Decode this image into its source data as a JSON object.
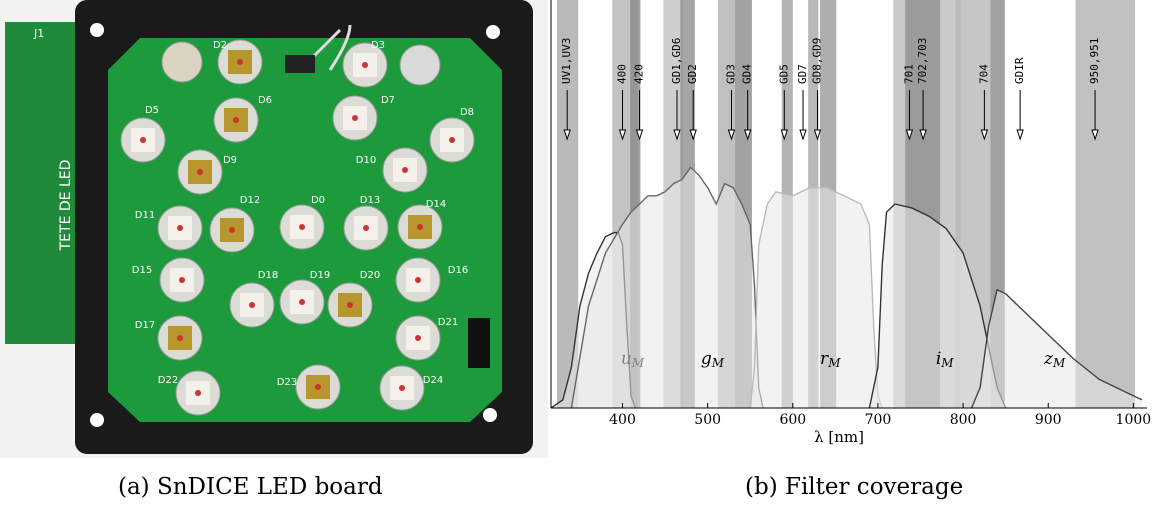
{
  "photo": {
    "connector": "J1",
    "board_text": "TETE DE LED",
    "led_labels": [
      "D2",
      "D3",
      "D5",
      "D6",
      "D7",
      "D8",
      "D9",
      "D10",
      "D11",
      "D12",
      "D0",
      "D13",
      "D14",
      "D15",
      "D16",
      "D17",
      "D18",
      "D19",
      "D20",
      "D21",
      "D22",
      "D23",
      "D24"
    ],
    "caption": "(a) SnDICE LED board"
  },
  "chart_data": {
    "type": "line",
    "xlabel": "λ [nm]",
    "caption": "(b) Filter coverage",
    "xlim": [
      316,
      1016
    ],
    "ylim": [
      0,
      1
    ],
    "xticks": [
      400,
      500,
      600,
      700,
      800,
      900,
      1000
    ],
    "bands": [
      {
        "lo": 323,
        "hi": 348,
        "color": "#a9a9a9"
      },
      {
        "lo": 388,
        "hi": 418,
        "color": "#b4b4b4"
      },
      {
        "lo": 409,
        "hi": 421,
        "color": "#8a8a8a"
      },
      {
        "lo": 448,
        "hi": 471,
        "color": "#c2c2c2"
      },
      {
        "lo": 468,
        "hi": 485,
        "color": "#8f8f8f"
      },
      {
        "lo": 512,
        "hi": 532,
        "color": "#b0b0b0"
      },
      {
        "lo": 532,
        "hi": 552,
        "color": "#8c8c8c"
      },
      {
        "lo": 587,
        "hi": 600,
        "color": "#a0a0a0"
      },
      {
        "lo": 618,
        "hi": 630,
        "color": "#a8a8a8"
      },
      {
        "lo": 632,
        "hi": 651,
        "color": "#9a9a9a"
      },
      {
        "lo": 718,
        "hi": 797,
        "color": "#bdbdbd"
      },
      {
        "lo": 732,
        "hi": 773,
        "color": "#8e8e8e"
      },
      {
        "lo": 791,
        "hi": 832,
        "color": "#b8b8b8"
      },
      {
        "lo": 832,
        "hi": 849,
        "color": "#8a8a8a"
      },
      {
        "lo": 932,
        "hi": 1002,
        "color": "#b2b2b2"
      }
    ],
    "annotations": [
      {
        "x": 335,
        "label": "UV1,UV3"
      },
      {
        "x": 400,
        "label": "400"
      },
      {
        "x": 420,
        "label": "420"
      },
      {
        "x": 464,
        "label": "GD1,GD6"
      },
      {
        "x": 483,
        "label": "GD2"
      },
      {
        "x": 528,
        "label": "GD3"
      },
      {
        "x": 547,
        "label": "GD4"
      },
      {
        "x": 590,
        "label": "GD5"
      },
      {
        "x": 612,
        "label": "GD7"
      },
      {
        "x": 629,
        "label": "GD8,GD9"
      },
      {
        "x": 737,
        "label": "701"
      },
      {
        "x": 753,
        "label": "702,703"
      },
      {
        "x": 825,
        "label": "704"
      },
      {
        "x": 867,
        "label": "GDIR"
      },
      {
        "x": 955,
        "label": "950,951"
      }
    ],
    "series": [
      {
        "name": "u",
        "sub": "M",
        "label_x": 398,
        "label_y": 0.12,
        "color": "#333333",
        "x": [
          316,
          330,
          340,
          350,
          360,
          370,
          380,
          390,
          395,
          400,
          405,
          410,
          415
        ],
        "y": [
          0,
          0.02,
          0.1,
          0.25,
          0.33,
          0.38,
          0.42,
          0.43,
          0.43,
          0.4,
          0.2,
          0.03,
          0
        ]
      },
      {
        "name": "g",
        "sub": "M",
        "label_x": 492,
        "label_y": 0.12,
        "color": "#666666",
        "x": [
          340,
          360,
          380,
          400,
          410,
          420,
          430,
          440,
          450,
          460,
          470,
          480,
          490,
          500,
          510,
          520,
          530,
          540,
          550,
          555,
          560,
          565
        ],
        "y": [
          0,
          0.25,
          0.38,
          0.45,
          0.48,
          0.5,
          0.52,
          0.52,
          0.53,
          0.55,
          0.56,
          0.59,
          0.57,
          0.54,
          0.5,
          0.55,
          0.54,
          0.5,
          0.45,
          0.3,
          0.05,
          0
        ]
      },
      {
        "name": "r",
        "sub": "M",
        "label_x": 632,
        "label_y": 0.12,
        "color": "#bbbbbb",
        "x": [
          550,
          555,
          560,
          570,
          580,
          600,
          620,
          640,
          660,
          680,
          690,
          695,
          700,
          705
        ],
        "y": [
          0,
          0.1,
          0.4,
          0.5,
          0.53,
          0.52,
          0.54,
          0.54,
          0.52,
          0.5,
          0.45,
          0.2,
          0.03,
          0
        ]
      },
      {
        "name": "i",
        "sub": "M",
        "label_x": 768,
        "label_y": 0.12,
        "color": "#333333",
        "x": [
          690,
          700,
          705,
          710,
          720,
          740,
          760,
          780,
          800,
          820,
          830,
          840,
          850
        ],
        "y": [
          0,
          0.1,
          0.35,
          0.48,
          0.5,
          0.49,
          0.47,
          0.44,
          0.38,
          0.25,
          0.15,
          0.05,
          0
        ]
      },
      {
        "name": "z",
        "sub": "M",
        "label_x": 895,
        "label_y": 0.12,
        "color": "#444444",
        "x": [
          810,
          820,
          830,
          840,
          850,
          870,
          900,
          930,
          960,
          990,
          1010
        ],
        "y": [
          0,
          0.05,
          0.2,
          0.29,
          0.28,
          0.24,
          0.18,
          0.12,
          0.07,
          0.04,
          0.02
        ]
      }
    ]
  }
}
